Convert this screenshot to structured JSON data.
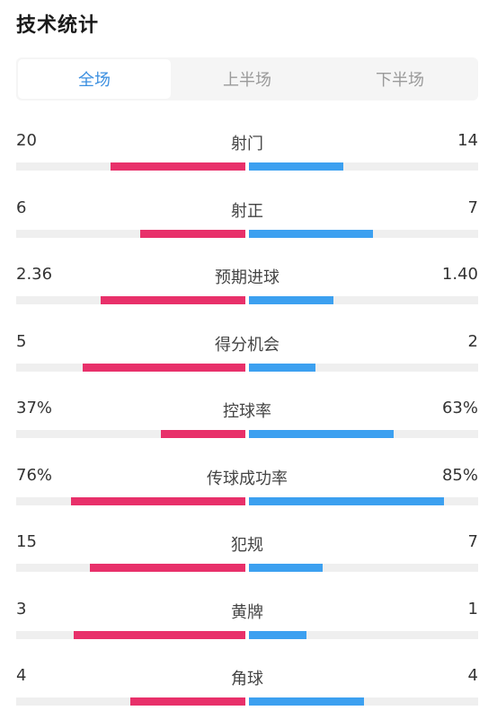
{
  "page": {
    "title": "技术统计"
  },
  "tabs": [
    {
      "label": "全场",
      "active": true
    },
    {
      "label": "上半场",
      "active": false
    },
    {
      "label": "下半场",
      "active": false
    }
  ],
  "colors": {
    "home": "#e8306a",
    "away": "#3ca0f0",
    "active_tab": "#3b8fe0"
  },
  "stats": [
    {
      "name": "射门",
      "home": "20",
      "away": "14",
      "home_fill": 0.59,
      "away_fill": 0.41
    },
    {
      "name": "射正",
      "home": "6",
      "away": "7",
      "home_fill": 0.46,
      "away_fill": 0.54
    },
    {
      "name": "预期进球",
      "home": "2.36",
      "away": "1.40",
      "home_fill": 0.63,
      "away_fill": 0.37
    },
    {
      "name": "得分机会",
      "home": "5",
      "away": "2",
      "home_fill": 0.71,
      "away_fill": 0.29
    },
    {
      "name": "控球率",
      "home": "37%",
      "away": "63%",
      "home_fill": 0.37,
      "away_fill": 0.63
    },
    {
      "name": "传球成功率",
      "home": "76%",
      "away": "85%",
      "home_fill": 0.76,
      "away_fill": 0.85
    },
    {
      "name": "犯规",
      "home": "15",
      "away": "7",
      "home_fill": 0.68,
      "away_fill": 0.32
    },
    {
      "name": "黄牌",
      "home": "3",
      "away": "1",
      "home_fill": 0.75,
      "away_fill": 0.25
    },
    {
      "name": "角球",
      "home": "4",
      "away": "4",
      "home_fill": 0.5,
      "away_fill": 0.5
    }
  ]
}
